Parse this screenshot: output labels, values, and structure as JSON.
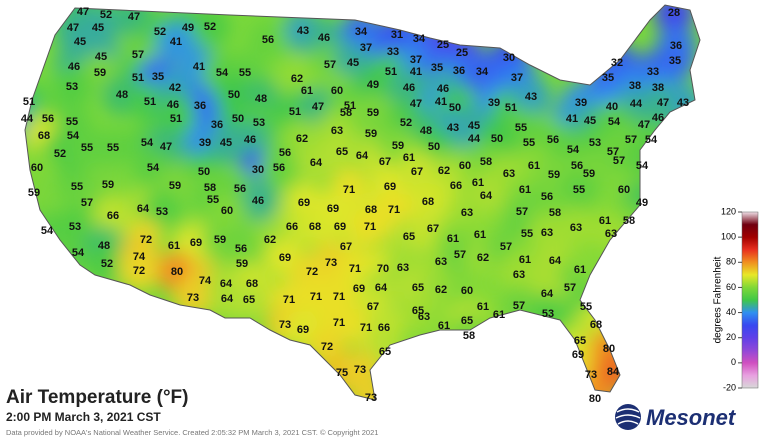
{
  "title": "Air Temperature (°F)",
  "subtitle": "2:00 PM March 3, 2021 CST",
  "credit": "Data provided by NOAA's National Weather Service. Created 2:05:32 PM March 3, 2021 CST. © Copyright 2021",
  "logo": "Mesonet",
  "colorbar": {
    "label": "degrees Fahrenheit",
    "ticks": [
      -20,
      0,
      20,
      40,
      60,
      80,
      100,
      120
    ],
    "colors": [
      "#d8d8d8",
      "#e8a0e0",
      "#d050c0",
      "#9048d8",
      "#6040e8",
      "#3848f0",
      "#3090f0",
      "#40c848",
      "#80d838",
      "#e8e828",
      "#f09020",
      "#e83020",
      "#a00000",
      "#700010",
      "#f0e0e8"
    ]
  },
  "temperatures": [
    47,
    52,
    47,
    47,
    45,
    52,
    49,
    52,
    43,
    34,
    31,
    34,
    25,
    25,
    30,
    28,
    36,
    45,
    45,
    57,
    41,
    56,
    46,
    37,
    33,
    37,
    32,
    35,
    46,
    59,
    51,
    35,
    41,
    54,
    55,
    62,
    57,
    45,
    49,
    51,
    41,
    35,
    36,
    34,
    37,
    33,
    35,
    53,
    48,
    51,
    42,
    36,
    50,
    48,
    61,
    60,
    51,
    46,
    47,
    46,
    41,
    50,
    39,
    51,
    43,
    38,
    38,
    47,
    43,
    39,
    40,
    44,
    51,
    46,
    44,
    56,
    55,
    51,
    36,
    50,
    53,
    51,
    47,
    58,
    59,
    52,
    48,
    43,
    45,
    55,
    41,
    45,
    54,
    47,
    46,
    68,
    54,
    52,
    55,
    54,
    47,
    39,
    45,
    46,
    56,
    62,
    63,
    59,
    44,
    50,
    55,
    56,
    53,
    57,
    54,
    54,
    57,
    60,
    55,
    54,
    50,
    58,
    30,
    56,
    64,
    65,
    64,
    67,
    59,
    50,
    61,
    60,
    58,
    62,
    61,
    56,
    57,
    54,
    59,
    55,
    59,
    57,
    59,
    56,
    55,
    46,
    69,
    71,
    69,
    66,
    61,
    63,
    67,
    68,
    64,
    61,
    56,
    59,
    59,
    55,
    60,
    49,
    66,
    64,
    53,
    60,
    69,
    68,
    71,
    63,
    57,
    58,
    61,
    58,
    54,
    53,
    66,
    68,
    69,
    62,
    72,
    61,
    69,
    59,
    67,
    71,
    65,
    67,
    61,
    61,
    55,
    63,
    63,
    63,
    54,
    48,
    52,
    74,
    72,
    80,
    56,
    59,
    69,
    73,
    71,
    70,
    63,
    72,
    63,
    57,
    62,
    57,
    61,
    64,
    61,
    74,
    64,
    68,
    69,
    64,
    65,
    62,
    60,
    63,
    57,
    64,
    73,
    64,
    65,
    71,
    71,
    71,
    67,
    65,
    61,
    61,
    57,
    53,
    55,
    73,
    69,
    71,
    71,
    66,
    63,
    61,
    65,
    68,
    65,
    58,
    72,
    65,
    69,
    80,
    75,
    73,
    73,
    84,
    73,
    80
  ]
}
